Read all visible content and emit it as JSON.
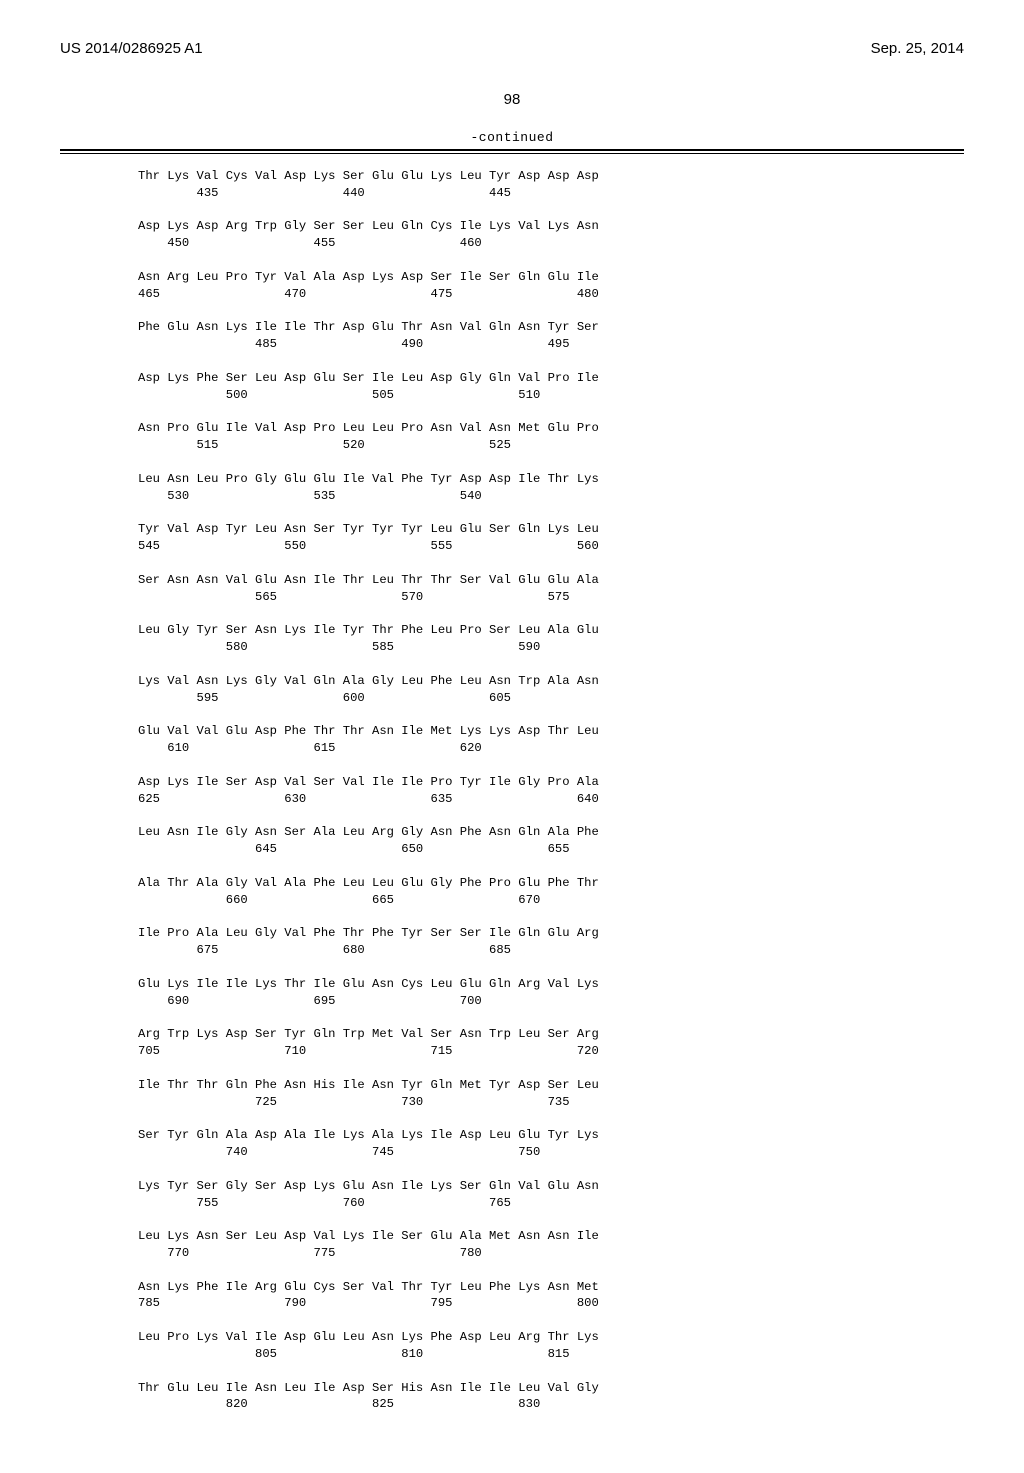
{
  "header": {
    "left": "US 2014/0286925 A1",
    "right": "Sep. 25, 2014"
  },
  "page_number": "98",
  "continued_label": "-continued",
  "sequence": [
    {
      "aa": [
        "Thr",
        "Lys",
        "Val",
        "Cys",
        "Val",
        "Asp",
        "Lys",
        "Ser",
        "Glu",
        "Glu",
        "Lys",
        "Leu",
        "Tyr",
        "Asp",
        "Asp",
        "Asp"
      ],
      "nums": {
        "2": "435",
        "7": "440",
        "12": "445"
      }
    },
    {
      "aa": [
        "Asp",
        "Lys",
        "Asp",
        "Arg",
        "Trp",
        "Gly",
        "Ser",
        "Ser",
        "Leu",
        "Gln",
        "Cys",
        "Ile",
        "Lys",
        "Val",
        "Lys",
        "Asn"
      ],
      "nums": {
        "1": "450",
        "6": "455",
        "11": "460"
      }
    },
    {
      "aa": [
        "Asn",
        "Arg",
        "Leu",
        "Pro",
        "Tyr",
        "Val",
        "Ala",
        "Asp",
        "Lys",
        "Asp",
        "Ser",
        "Ile",
        "Ser",
        "Gln",
        "Glu",
        "Ile"
      ],
      "nums": {
        "0": "465",
        "5": "470",
        "10": "475",
        "15": "480"
      }
    },
    {
      "aa": [
        "Phe",
        "Glu",
        "Asn",
        "Lys",
        "Ile",
        "Ile",
        "Thr",
        "Asp",
        "Glu",
        "Thr",
        "Asn",
        "Val",
        "Gln",
        "Asn",
        "Tyr",
        "Ser"
      ],
      "nums": {
        "4": "485",
        "9": "490",
        "14": "495"
      }
    },
    {
      "aa": [
        "Asp",
        "Lys",
        "Phe",
        "Ser",
        "Leu",
        "Asp",
        "Glu",
        "Ser",
        "Ile",
        "Leu",
        "Asp",
        "Gly",
        "Gln",
        "Val",
        "Pro",
        "Ile"
      ],
      "nums": {
        "3": "500",
        "8": "505",
        "13": "510"
      }
    },
    {
      "aa": [
        "Asn",
        "Pro",
        "Glu",
        "Ile",
        "Val",
        "Asp",
        "Pro",
        "Leu",
        "Leu",
        "Pro",
        "Asn",
        "Val",
        "Asn",
        "Met",
        "Glu",
        "Pro"
      ],
      "nums": {
        "2": "515",
        "7": "520",
        "12": "525"
      }
    },
    {
      "aa": [
        "Leu",
        "Asn",
        "Leu",
        "Pro",
        "Gly",
        "Glu",
        "Glu",
        "Ile",
        "Val",
        "Phe",
        "Tyr",
        "Asp",
        "Asp",
        "Ile",
        "Thr",
        "Lys"
      ],
      "nums": {
        "1": "530",
        "6": "535",
        "11": "540"
      }
    },
    {
      "aa": [
        "Tyr",
        "Val",
        "Asp",
        "Tyr",
        "Leu",
        "Asn",
        "Ser",
        "Tyr",
        "Tyr",
        "Tyr",
        "Leu",
        "Glu",
        "Ser",
        "Gln",
        "Lys",
        "Leu"
      ],
      "nums": {
        "0": "545",
        "5": "550",
        "10": "555",
        "15": "560"
      }
    },
    {
      "aa": [
        "Ser",
        "Asn",
        "Asn",
        "Val",
        "Glu",
        "Asn",
        "Ile",
        "Thr",
        "Leu",
        "Thr",
        "Thr",
        "Ser",
        "Val",
        "Glu",
        "Glu",
        "Ala"
      ],
      "nums": {
        "4": "565",
        "9": "570",
        "14": "575"
      }
    },
    {
      "aa": [
        "Leu",
        "Gly",
        "Tyr",
        "Ser",
        "Asn",
        "Lys",
        "Ile",
        "Tyr",
        "Thr",
        "Phe",
        "Leu",
        "Pro",
        "Ser",
        "Leu",
        "Ala",
        "Glu"
      ],
      "nums": {
        "3": "580",
        "8": "585",
        "13": "590"
      }
    },
    {
      "aa": [
        "Lys",
        "Val",
        "Asn",
        "Lys",
        "Gly",
        "Val",
        "Gln",
        "Ala",
        "Gly",
        "Leu",
        "Phe",
        "Leu",
        "Asn",
        "Trp",
        "Ala",
        "Asn"
      ],
      "nums": {
        "2": "595",
        "7": "600",
        "12": "605"
      }
    },
    {
      "aa": [
        "Glu",
        "Val",
        "Val",
        "Glu",
        "Asp",
        "Phe",
        "Thr",
        "Thr",
        "Asn",
        "Ile",
        "Met",
        "Lys",
        "Lys",
        "Asp",
        "Thr",
        "Leu"
      ],
      "nums": {
        "1": "610",
        "6": "615",
        "11": "620"
      }
    },
    {
      "aa": [
        "Asp",
        "Lys",
        "Ile",
        "Ser",
        "Asp",
        "Val",
        "Ser",
        "Val",
        "Ile",
        "Ile",
        "Pro",
        "Tyr",
        "Ile",
        "Gly",
        "Pro",
        "Ala"
      ],
      "nums": {
        "0": "625",
        "5": "630",
        "10": "635",
        "15": "640"
      }
    },
    {
      "aa": [
        "Leu",
        "Asn",
        "Ile",
        "Gly",
        "Asn",
        "Ser",
        "Ala",
        "Leu",
        "Arg",
        "Gly",
        "Asn",
        "Phe",
        "Asn",
        "Gln",
        "Ala",
        "Phe"
      ],
      "nums": {
        "4": "645",
        "9": "650",
        "14": "655"
      }
    },
    {
      "aa": [
        "Ala",
        "Thr",
        "Ala",
        "Gly",
        "Val",
        "Ala",
        "Phe",
        "Leu",
        "Leu",
        "Glu",
        "Gly",
        "Phe",
        "Pro",
        "Glu",
        "Phe",
        "Thr"
      ],
      "nums": {
        "3": "660",
        "8": "665",
        "13": "670"
      }
    },
    {
      "aa": [
        "Ile",
        "Pro",
        "Ala",
        "Leu",
        "Gly",
        "Val",
        "Phe",
        "Thr",
        "Phe",
        "Tyr",
        "Ser",
        "Ser",
        "Ile",
        "Gln",
        "Glu",
        "Arg"
      ],
      "nums": {
        "2": "675",
        "7": "680",
        "12": "685"
      }
    },
    {
      "aa": [
        "Glu",
        "Lys",
        "Ile",
        "Ile",
        "Lys",
        "Thr",
        "Ile",
        "Glu",
        "Asn",
        "Cys",
        "Leu",
        "Glu",
        "Gln",
        "Arg",
        "Val",
        "Lys"
      ],
      "nums": {
        "1": "690",
        "6": "695",
        "11": "700"
      }
    },
    {
      "aa": [
        "Arg",
        "Trp",
        "Lys",
        "Asp",
        "Ser",
        "Tyr",
        "Gln",
        "Trp",
        "Met",
        "Val",
        "Ser",
        "Asn",
        "Trp",
        "Leu",
        "Ser",
        "Arg"
      ],
      "nums": {
        "0": "705",
        "5": "710",
        "10": "715",
        "15": "720"
      }
    },
    {
      "aa": [
        "Ile",
        "Thr",
        "Thr",
        "Gln",
        "Phe",
        "Asn",
        "His",
        "Ile",
        "Asn",
        "Tyr",
        "Gln",
        "Met",
        "Tyr",
        "Asp",
        "Ser",
        "Leu"
      ],
      "nums": {
        "4": "725",
        "9": "730",
        "14": "735"
      }
    },
    {
      "aa": [
        "Ser",
        "Tyr",
        "Gln",
        "Ala",
        "Asp",
        "Ala",
        "Ile",
        "Lys",
        "Ala",
        "Lys",
        "Ile",
        "Asp",
        "Leu",
        "Glu",
        "Tyr",
        "Lys"
      ],
      "nums": {
        "3": "740",
        "8": "745",
        "13": "750"
      }
    },
    {
      "aa": [
        "Lys",
        "Tyr",
        "Ser",
        "Gly",
        "Ser",
        "Asp",
        "Lys",
        "Glu",
        "Asn",
        "Ile",
        "Lys",
        "Ser",
        "Gln",
        "Val",
        "Glu",
        "Asn"
      ],
      "nums": {
        "2": "755",
        "7": "760",
        "12": "765"
      }
    },
    {
      "aa": [
        "Leu",
        "Lys",
        "Asn",
        "Ser",
        "Leu",
        "Asp",
        "Val",
        "Lys",
        "Ile",
        "Ser",
        "Glu",
        "Ala",
        "Met",
        "Asn",
        "Asn",
        "Ile"
      ],
      "nums": {
        "1": "770",
        "6": "775",
        "11": "780"
      }
    },
    {
      "aa": [
        "Asn",
        "Lys",
        "Phe",
        "Ile",
        "Arg",
        "Glu",
        "Cys",
        "Ser",
        "Val",
        "Thr",
        "Tyr",
        "Leu",
        "Phe",
        "Lys",
        "Asn",
        "Met"
      ],
      "nums": {
        "0": "785",
        "5": "790",
        "10": "795",
        "15": "800"
      }
    },
    {
      "aa": [
        "Leu",
        "Pro",
        "Lys",
        "Val",
        "Ile",
        "Asp",
        "Glu",
        "Leu",
        "Asn",
        "Lys",
        "Phe",
        "Asp",
        "Leu",
        "Arg",
        "Thr",
        "Lys"
      ],
      "nums": {
        "4": "805",
        "9": "810",
        "14": "815"
      }
    },
    {
      "aa": [
        "Thr",
        "Glu",
        "Leu",
        "Ile",
        "Asn",
        "Leu",
        "Ile",
        "Asp",
        "Ser",
        "His",
        "Asn",
        "Ile",
        "Ile",
        "Leu",
        "Val",
        "Gly"
      ],
      "nums": {
        "3": "820",
        "8": "825",
        "13": "830"
      }
    }
  ]
}
